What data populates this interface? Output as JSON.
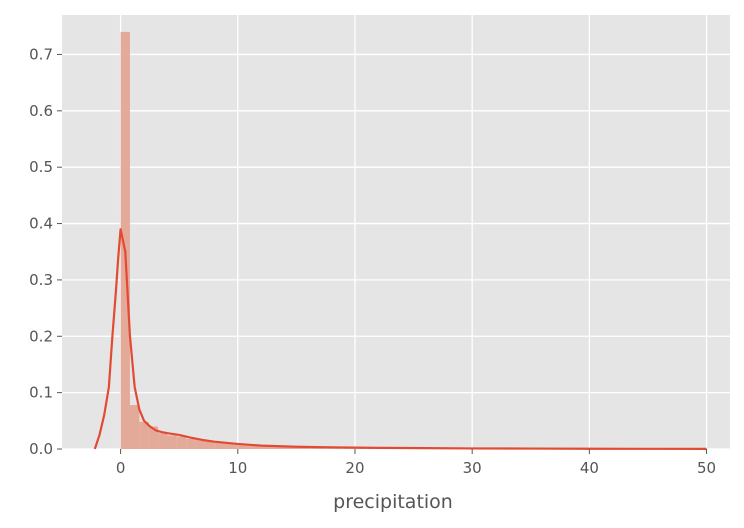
{
  "chart_data": {
    "type": "histogram_with_kde",
    "title": "",
    "xlabel": "precipitation",
    "ylabel": "",
    "xlim": [
      -5,
      52
    ],
    "ylim": [
      0,
      0.77
    ],
    "x_ticks": [
      0,
      10,
      20,
      30,
      40,
      50
    ],
    "y_ticks": [
      0.0,
      0.1,
      0.2,
      0.3,
      0.4,
      0.5,
      0.6,
      0.7
    ],
    "grid": true,
    "colors": {
      "background": "#e5e5e5",
      "grid": "#ffffff",
      "bar_fill": "#e3a696",
      "kde_line": "#e24a33",
      "tick_text": "#555555"
    },
    "histogram": {
      "bin_edges": [
        0,
        0.8,
        1.6,
        2.4,
        3.2,
        4.0,
        4.8,
        5.6,
        6.4,
        7.2,
        8.0,
        9.0,
        10.0,
        12.0,
        14.0,
        16.0,
        18.0,
        20.0,
        22.0,
        24.0,
        28.0,
        32.0,
        36.0,
        40.0,
        44.0,
        48.0,
        50.0
      ],
      "density": [
        0.74,
        0.078,
        0.048,
        0.04,
        0.028,
        0.024,
        0.022,
        0.018,
        0.016,
        0.014,
        0.012,
        0.01,
        0.008,
        0.006,
        0.004,
        0.003,
        0.0025,
        0.002,
        0.0015,
        0.001,
        0.0008,
        0.0006,
        0.0005,
        0.0004,
        0.0003,
        0.0002
      ]
    },
    "kde": {
      "x": [
        -2.2,
        -1.8,
        -1.4,
        -1.0,
        -0.7,
        -0.4,
        -0.2,
        0.0,
        0.4,
        0.8,
        1.2,
        1.6,
        2.0,
        2.5,
        3.0,
        3.5,
        4.0,
        5.0,
        6.0,
        7.0,
        8.0,
        10.0,
        12.0,
        15.0,
        18.0,
        22.0,
        26.0,
        30.0,
        35.0,
        40.0,
        45.0,
        50.0
      ],
      "y": [
        0.0,
        0.025,
        0.06,
        0.11,
        0.2,
        0.28,
        0.34,
        0.39,
        0.35,
        0.2,
        0.11,
        0.07,
        0.05,
        0.04,
        0.033,
        0.03,
        0.028,
        0.025,
        0.02,
        0.016,
        0.013,
        0.009,
        0.006,
        0.004,
        0.003,
        0.002,
        0.0015,
        0.001,
        0.0008,
        0.0005,
        0.0003,
        0.0002
      ]
    }
  }
}
